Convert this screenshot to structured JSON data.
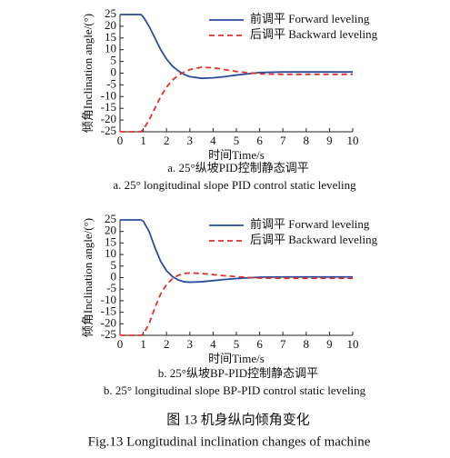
{
  "chart_data": [
    {
      "type": "line",
      "ylabel": "倾角Inclination angle/(°)",
      "xlabel": "时间Time/s",
      "caption_cn": "a. 25°纵坡PID控制静态调平",
      "caption_en": "a. 25° longitudinal slope PID control static leveling",
      "x": [
        0,
        0.5,
        0.9,
        1,
        1.25,
        1.5,
        1.75,
        2,
        2.25,
        2.5,
        2.75,
        3,
        3.5,
        4,
        4.5,
        5,
        5.5,
        6,
        7,
        8,
        9,
        10
      ],
      "series": [
        {
          "name": "前调平 Forward leveling",
          "color": "#2a4d9b",
          "dash": false,
          "values": [
            25,
            25,
            25,
            24,
            20,
            15,
            10,
            6,
            3,
            1,
            -0.5,
            -1.5,
            -2.2,
            -2,
            -1.5,
            -0.8,
            -0.3,
            0.3,
            0.5,
            0.5,
            0.5,
            0.5
          ]
        },
        {
          "name": "后调平 Backward leveling",
          "color": "#e0302a",
          "dash": true,
          "values": [
            -25,
            -25,
            -25,
            -24,
            -20,
            -15,
            -10,
            -6,
            -3,
            -1,
            0.5,
            1.5,
            2.5,
            2.3,
            1.5,
            0.7,
            0.2,
            -0.3,
            -0.5,
            -0.5,
            -0.5,
            -0.5
          ]
        }
      ],
      "xlim": [
        0,
        10
      ],
      "xticks": [
        0,
        1,
        2,
        3,
        4,
        5,
        6,
        7,
        8,
        9,
        10
      ],
      "ylim": [
        -25,
        25
      ],
      "yticks": [
        -25,
        -20,
        -15,
        -10,
        -5,
        0,
        5,
        10,
        15,
        20,
        25
      ],
      "legend": "upper right"
    },
    {
      "type": "line",
      "ylabel": "倾角Inclination angle/(°)",
      "xlabel": "时间Time/s",
      "caption_cn": "b. 25°纵坡BP-PID控制静态调平",
      "caption_en": "b. 25° longitudinal slope BP-PID control static leveling",
      "x": [
        0,
        0.5,
        0.9,
        1,
        1.25,
        1.5,
        1.75,
        2,
        2.25,
        2.5,
        2.75,
        3,
        3.5,
        4,
        4.5,
        5,
        5.5,
        6,
        7,
        8,
        9,
        10
      ],
      "series": [
        {
          "name": "前调平 Forward leveling",
          "color": "#2a4d9b",
          "dash": false,
          "values": [
            25,
            25,
            25,
            24.5,
            20,
            13,
            7,
            3,
            0.5,
            -1,
            -1.8,
            -2,
            -1.8,
            -1.3,
            -0.8,
            -0.4,
            -0.1,
            0.2,
            0.3,
            0.3,
            0.3,
            0.3
          ]
        },
        {
          "name": "后调平 Backward leveling",
          "color": "#e0302a",
          "dash": true,
          "values": [
            -25,
            -25,
            -25,
            -24.5,
            -20,
            -13,
            -7,
            -3,
            -0.5,
            1,
            1.8,
            2,
            1.8,
            1.3,
            0.8,
            0.4,
            0.1,
            -0.2,
            -0.3,
            -0.3,
            -0.3,
            -0.3
          ]
        }
      ],
      "xlim": [
        0,
        10
      ],
      "xticks": [
        0,
        1,
        2,
        3,
        4,
        5,
        6,
        7,
        8,
        9,
        10
      ],
      "ylim": [
        -25,
        25
      ],
      "yticks": [
        -25,
        -20,
        -15,
        -10,
        -5,
        0,
        5,
        10,
        15,
        20,
        25
      ],
      "legend": "upper right"
    }
  ],
  "figure": {
    "caption_cn": "图 13   机身纵向倾角变化",
    "caption_en": "Fig.13   Longitudinal inclination changes of machine"
  }
}
